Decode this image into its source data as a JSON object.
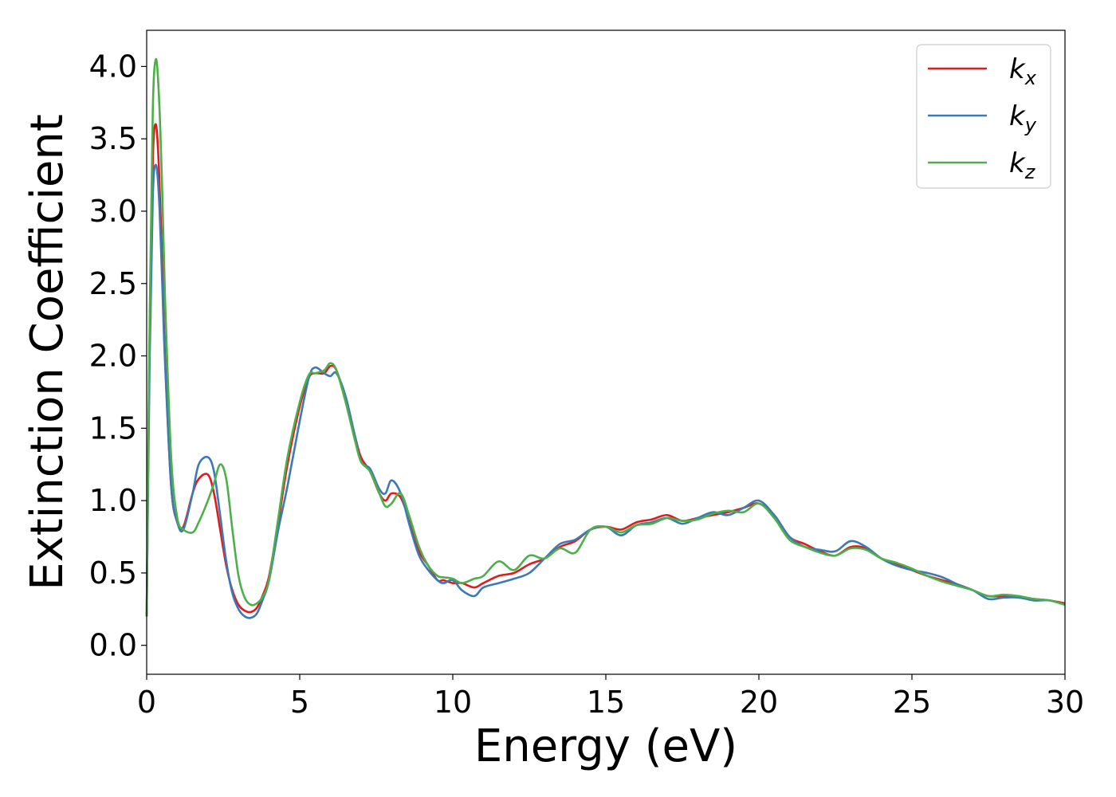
{
  "chart_data": {
    "type": "line",
    "title": "",
    "xlabel": "Energy (eV)",
    "ylabel": "Extinction Coefficient",
    "xlim": [
      0,
      30
    ],
    "ylim": [
      -0.2,
      4.25
    ],
    "xticks": [
      0,
      5,
      10,
      15,
      20,
      25,
      30
    ],
    "xtick_labels": [
      "0",
      "5",
      "10",
      "15",
      "20",
      "25",
      "30"
    ],
    "yticks": [
      0.0,
      0.5,
      1.0,
      1.5,
      2.0,
      2.5,
      3.0,
      3.5,
      4.0
    ],
    "ytick_labels": [
      "0.0",
      "0.5",
      "1.0",
      "1.5",
      "2.0",
      "2.5",
      "3.0",
      "3.5",
      "4.0"
    ],
    "grid": false,
    "legend_position": "top-right",
    "series": [
      {
        "name": "k_x",
        "label_base": "k",
        "label_sub": "x",
        "color": "#e31a1c",
        "x": [
          0,
          0.1,
          0.2,
          0.3,
          0.4,
          0.5,
          0.6,
          0.8,
          1.0,
          1.2,
          1.5,
          1.7,
          2.0,
          2.2,
          2.4,
          2.6,
          2.8,
          3.0,
          3.2,
          3.4,
          3.6,
          3.8,
          4.0,
          4.3,
          4.6,
          5.0,
          5.3,
          5.5,
          5.8,
          6.0,
          6.2,
          6.5,
          6.8,
          7.0,
          7.3,
          7.6,
          7.8,
          8.0,
          8.3,
          8.6,
          8.9,
          9.2,
          9.5,
          9.7,
          10.0,
          10.3,
          10.7,
          11.0,
          11.5,
          12.0,
          12.5,
          13.0,
          13.5,
          14.0,
          14.5,
          15.0,
          15.5,
          16.0,
          16.5,
          17.0,
          17.5,
          18.0,
          18.5,
          19.0,
          19.5,
          20.0,
          20.5,
          21.0,
          21.5,
          22.0,
          22.5,
          23.0,
          23.5,
          24.0,
          24.5,
          25.0,
          25.5,
          26.0,
          26.5,
          27.0,
          27.5,
          28.0,
          28.5,
          29.0,
          29.5,
          30.0
        ],
        "values": [
          0.2,
          2.2,
          3.35,
          3.6,
          3.3,
          2.7,
          2.0,
          1.1,
          0.85,
          0.82,
          1.05,
          1.15,
          1.18,
          1.05,
          0.8,
          0.55,
          0.38,
          0.28,
          0.24,
          0.23,
          0.26,
          0.35,
          0.48,
          0.85,
          1.25,
          1.65,
          1.85,
          1.88,
          1.88,
          1.93,
          1.9,
          1.7,
          1.45,
          1.3,
          1.2,
          1.05,
          1.0,
          1.05,
          1.02,
          0.85,
          0.65,
          0.55,
          0.45,
          0.45,
          0.43,
          0.43,
          0.4,
          0.43,
          0.48,
          0.5,
          0.56,
          0.6,
          0.68,
          0.72,
          0.8,
          0.82,
          0.8,
          0.85,
          0.87,
          0.9,
          0.86,
          0.88,
          0.9,
          0.92,
          0.95,
          0.98,
          0.9,
          0.75,
          0.7,
          0.65,
          0.62,
          0.68,
          0.67,
          0.6,
          0.56,
          0.52,
          0.48,
          0.45,
          0.42,
          0.38,
          0.34,
          0.34,
          0.33,
          0.32,
          0.31,
          0.29
        ]
      },
      {
        "name": "k_y",
        "label_base": "k",
        "label_sub": "y",
        "color": "#3c7ab5",
        "x": [
          0,
          0.1,
          0.2,
          0.3,
          0.4,
          0.5,
          0.6,
          0.8,
          1.0,
          1.2,
          1.5,
          1.7,
          2.0,
          2.2,
          2.4,
          2.6,
          2.8,
          3.0,
          3.2,
          3.4,
          3.6,
          3.8,
          4.0,
          4.3,
          4.6,
          5.0,
          5.3,
          5.5,
          5.8,
          6.0,
          6.2,
          6.5,
          6.8,
          7.0,
          7.3,
          7.6,
          7.8,
          8.0,
          8.3,
          8.6,
          8.9,
          9.2,
          9.5,
          9.7,
          10.0,
          10.3,
          10.7,
          11.0,
          11.5,
          12.0,
          12.5,
          13.0,
          13.5,
          14.0,
          14.5,
          15.0,
          15.5,
          16.0,
          16.5,
          17.0,
          17.5,
          18.0,
          18.5,
          19.0,
          19.5,
          20.0,
          20.5,
          21.0,
          21.5,
          22.0,
          22.5,
          23.0,
          23.5,
          24.0,
          24.5,
          25.0,
          25.5,
          26.0,
          26.5,
          27.0,
          27.5,
          28.0,
          28.5,
          29.0,
          29.5,
          30.0
        ],
        "values": [
          0.2,
          2.0,
          3.1,
          3.32,
          3.1,
          2.55,
          1.95,
          1.1,
          0.85,
          0.8,
          1.05,
          1.25,
          1.3,
          1.2,
          0.9,
          0.58,
          0.36,
          0.25,
          0.2,
          0.19,
          0.22,
          0.32,
          0.45,
          0.8,
          1.1,
          1.55,
          1.85,
          1.92,
          1.88,
          1.86,
          1.88,
          1.72,
          1.45,
          1.27,
          1.22,
          1.08,
          1.05,
          1.14,
          1.05,
          0.82,
          0.62,
          0.52,
          0.45,
          0.43,
          0.45,
          0.38,
          0.34,
          0.4,
          0.43,
          0.46,
          0.5,
          0.6,
          0.7,
          0.73,
          0.8,
          0.82,
          0.76,
          0.83,
          0.85,
          0.88,
          0.84,
          0.88,
          0.92,
          0.9,
          0.95,
          1.0,
          0.9,
          0.75,
          0.68,
          0.66,
          0.65,
          0.72,
          0.68,
          0.6,
          0.55,
          0.52,
          0.5,
          0.47,
          0.42,
          0.38,
          0.32,
          0.33,
          0.33,
          0.31,
          0.31,
          0.28
        ]
      },
      {
        "name": "k_z",
        "label_base": "k",
        "label_sub": "z",
        "color": "#4daf4a",
        "x": [
          0,
          0.1,
          0.2,
          0.3,
          0.4,
          0.5,
          0.6,
          0.8,
          1.0,
          1.2,
          1.5,
          1.7,
          2.0,
          2.2,
          2.4,
          2.6,
          2.8,
          3.0,
          3.2,
          3.4,
          3.6,
          3.8,
          4.0,
          4.3,
          4.6,
          5.0,
          5.3,
          5.5,
          5.8,
          6.0,
          6.2,
          6.5,
          6.8,
          7.0,
          7.3,
          7.6,
          7.8,
          8.0,
          8.3,
          8.6,
          8.9,
          9.2,
          9.5,
          9.7,
          10.0,
          10.3,
          10.7,
          11.0,
          11.5,
          12.0,
          12.5,
          13.0,
          13.5,
          14.0,
          14.5,
          15.0,
          15.5,
          16.0,
          16.5,
          17.0,
          17.5,
          18.0,
          18.5,
          19.0,
          19.5,
          20.0,
          20.5,
          21.0,
          21.5,
          22.0,
          22.5,
          23.0,
          23.5,
          24.0,
          24.5,
          25.0,
          25.5,
          26.0,
          26.5,
          27.0,
          27.5,
          28.0,
          28.5,
          29.0,
          29.5,
          30.0
        ],
        "values": [
          0.2,
          2.3,
          3.7,
          4.05,
          3.8,
          3.2,
          2.4,
          1.3,
          0.88,
          0.8,
          0.78,
          0.85,
          1.0,
          1.12,
          1.25,
          1.15,
          0.8,
          0.48,
          0.33,
          0.28,
          0.29,
          0.34,
          0.46,
          0.88,
          1.3,
          1.68,
          1.87,
          1.88,
          1.9,
          1.95,
          1.9,
          1.68,
          1.42,
          1.27,
          1.2,
          1.05,
          0.96,
          0.98,
          1.05,
          0.88,
          0.68,
          0.55,
          0.48,
          0.47,
          0.46,
          0.43,
          0.46,
          0.48,
          0.58,
          0.52,
          0.62,
          0.6,
          0.67,
          0.64,
          0.8,
          0.82,
          0.78,
          0.83,
          0.84,
          0.88,
          0.86,
          0.87,
          0.91,
          0.93,
          0.92,
          0.98,
          0.88,
          0.73,
          0.68,
          0.64,
          0.62,
          0.67,
          0.66,
          0.6,
          0.57,
          0.53,
          0.48,
          0.44,
          0.41,
          0.38,
          0.34,
          0.35,
          0.34,
          0.32,
          0.31,
          0.28
        ]
      }
    ]
  }
}
